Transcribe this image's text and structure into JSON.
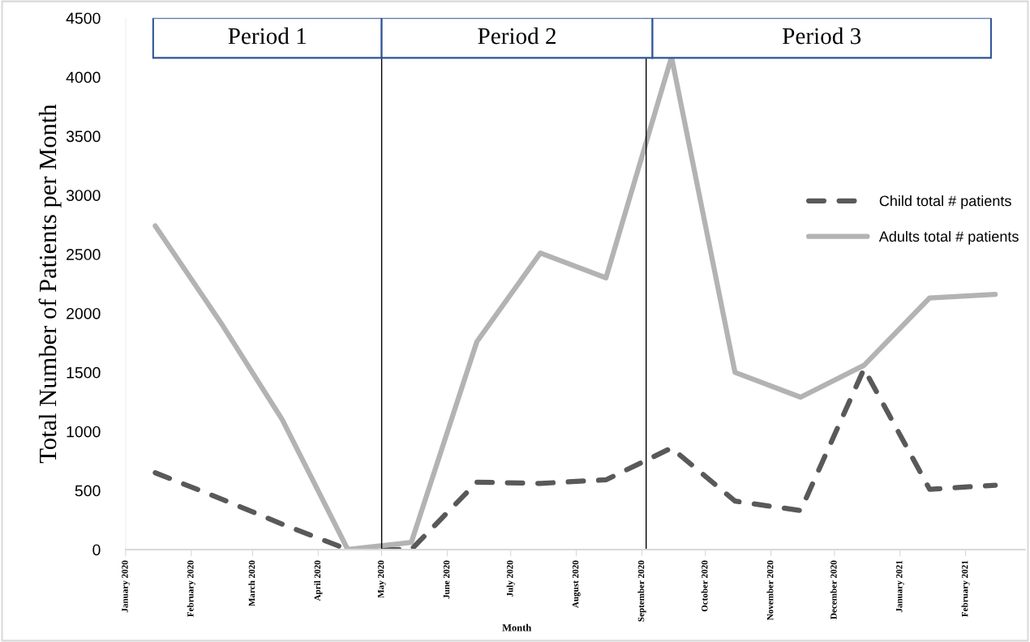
{
  "chart_data": {
    "type": "line",
    "xlabel": "Month",
    "ylabel": "Total Number of Patients per Month",
    "x": [
      "2020-01-15",
      "2020-02-15",
      "2020-03-15",
      "2020-04-15",
      "2020-05-15",
      "2020-06-15",
      "2020-07-15",
      "2020-08-15",
      "2020-09-15",
      "2020-10-15",
      "2020-11-15",
      "2020-12-15",
      "2021-01-15",
      "2021-02-15"
    ],
    "series": [
      {
        "name": "Child total # patients",
        "color": "#595959",
        "line_style": "dashed",
        "values": [
          650,
          430,
          215,
          0,
          0,
          570,
          560,
          590,
          860,
          410,
          330,
          1530,
          510,
          545
        ]
      },
      {
        "name": "Adults total # patients",
        "color": "#b3b3b3",
        "line_style": "solid",
        "values": [
          2740,
          1920,
          1100,
          0,
          60,
          1760,
          2510,
          2300,
          4170,
          1500,
          1290,
          1560,
          2130,
          2160
        ]
      }
    ],
    "xlim": [
      "2020-01-01",
      "2021-03-01"
    ],
    "xticks": [
      {
        "value": "2020-01-01",
        "label": "January 2020"
      },
      {
        "value": "2020-02-01",
        "label": "February 2020"
      },
      {
        "value": "2020-03-01",
        "label": "March 2020"
      },
      {
        "value": "2020-04-01",
        "label": "April 2020"
      },
      {
        "value": "2020-05-01",
        "label": "May 2020"
      },
      {
        "value": "2020-06-01",
        "label": "June 2020"
      },
      {
        "value": "2020-07-01",
        "label": "July 2020"
      },
      {
        "value": "2020-08-01",
        "label": "August 2020"
      },
      {
        "value": "2020-09-01",
        "label": "September 2020"
      },
      {
        "value": "2020-10-01",
        "label": "October 2020"
      },
      {
        "value": "2020-11-01",
        "label": "November 2020"
      },
      {
        "value": "2020-12-01",
        "label": "December 2020"
      },
      {
        "value": "2021-01-01",
        "label": "January 2021"
      },
      {
        "value": "2021-02-01",
        "label": "February 2021"
      }
    ],
    "ylim": [
      0,
      4500
    ],
    "yticks": [
      0,
      500,
      1000,
      1500,
      2000,
      2500,
      3000,
      3500,
      4000,
      4500
    ],
    "ref_lines": [
      {
        "axis": "x",
        "value": "2020-05-01",
        "color": "#000000"
      },
      {
        "axis": "x",
        "value": "2020-09-03",
        "color": "#000000"
      }
    ],
    "bands": [
      {
        "axis": "x",
        "from": "2020-01-14",
        "to": "2020-05-01",
        "label": "Period 1",
        "color": "#2f5597"
      },
      {
        "axis": "x",
        "from": "2020-05-01",
        "to": "2020-09-06",
        "label": "Period 2",
        "color": "#2f5597"
      },
      {
        "axis": "x",
        "from": "2020-09-06",
        "to": "2021-02-13",
        "label": "Period 3",
        "color": "#2f5597"
      }
    ],
    "grid": false,
    "legend": "center right",
    "marker": "none"
  }
}
